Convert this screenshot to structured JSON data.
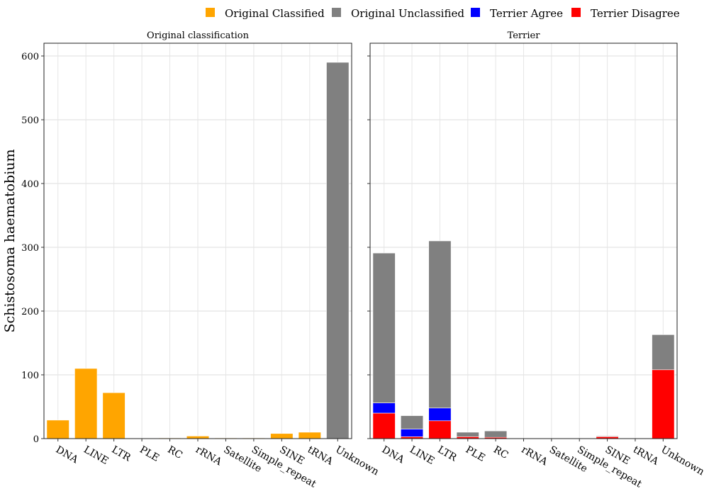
{
  "legend": {
    "items": [
      {
        "label": "Original Classified",
        "color": "#FFA500"
      },
      {
        "label": "Original Unclassified",
        "color": "#808080"
      },
      {
        "label": "Terrier Agree",
        "color": "#0000FF"
      },
      {
        "label": "Terrier Disagree",
        "color": "#FF0000"
      }
    ],
    "placement": "top-right"
  },
  "y_axis": {
    "label": "Schistosoma haematobium",
    "ticks": [
      0,
      100,
      200,
      300,
      400,
      500,
      600
    ],
    "ylim": [
      0,
      620
    ]
  },
  "categories": [
    "DNA",
    "LINE",
    "LTR",
    "PLE",
    "RC",
    "rRNA",
    "Satellite",
    "Simple_repeat",
    "SINE",
    "tRNA",
    "Unknown"
  ],
  "chart_data": [
    {
      "type": "bar",
      "title": "Original classification",
      "stacked": true,
      "categories": [
        "DNA",
        "LINE",
        "LTR",
        "PLE",
        "RC",
        "rRNA",
        "Satellite",
        "Simple_repeat",
        "SINE",
        "tRNA",
        "Unknown"
      ],
      "series": [
        {
          "name": "Original Classified",
          "color": "#FFA500",
          "values": [
            29,
            110,
            72,
            0,
            1,
            4,
            1,
            1,
            8,
            10,
            0
          ]
        },
        {
          "name": "Original Unclassified",
          "color": "#808080",
          "values": [
            0,
            0,
            0,
            0,
            0,
            0,
            0,
            0,
            0,
            0,
            590
          ]
        }
      ],
      "ylabel": "Schistosoma haematobium",
      "ylim": [
        0,
        620
      ],
      "grid": true
    },
    {
      "type": "bar",
      "title": "Terrier",
      "stacked": true,
      "categories": [
        "DNA",
        "LINE",
        "LTR",
        "PLE",
        "RC",
        "rRNA",
        "Satellite",
        "Simple_repeat",
        "SINE",
        "tRNA",
        "Unknown"
      ],
      "series": [
        {
          "name": "Terrier Disagree",
          "color": "#FF0000",
          "values": [
            40,
            3,
            28,
            3,
            2,
            0,
            0,
            0,
            3,
            0,
            108
          ]
        },
        {
          "name": "Terrier Agree",
          "color": "#0000FF",
          "values": [
            16,
            12,
            20,
            0,
            0,
            0,
            0,
            0,
            0,
            0,
            0
          ]
        },
        {
          "name": "Original Unclassified",
          "color": "#808080",
          "values": [
            235,
            21,
            262,
            7,
            10,
            0,
            0,
            0,
            1,
            0,
            55
          ]
        }
      ],
      "ylim": [
        0,
        620
      ],
      "grid": true
    }
  ]
}
